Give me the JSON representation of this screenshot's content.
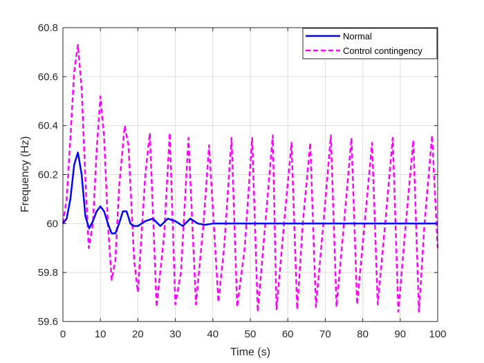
{
  "chart_data": {
    "type": "line",
    "title": "",
    "xlabel": "Time (s)",
    "ylabel": "Frequency (Hz)",
    "xlim": [
      0,
      100
    ],
    "ylim": [
      59.6,
      60.8
    ],
    "xticks": [
      0,
      10,
      20,
      30,
      40,
      50,
      60,
      70,
      80,
      90,
      100
    ],
    "yticks": [
      59.6,
      59.8,
      60,
      60.2,
      60.4,
      60.6,
      60.8
    ],
    "xtick_labels": [
      "0",
      "10",
      "20",
      "30",
      "40",
      "50",
      "60",
      "70",
      "80",
      "90",
      "100"
    ],
    "ytick_labels": [
      "59.6",
      "59.8",
      "60",
      "60.2",
      "60.4",
      "60.6",
      "60.8"
    ],
    "grid": true,
    "legend_position": "top-right",
    "series": [
      {
        "name": "Normal",
        "color": "#0000ff",
        "style": "solid",
        "x": [
          0,
          1,
          2,
          3,
          4,
          5,
          6,
          7,
          8,
          9,
          10,
          11,
          12,
          13,
          14,
          15,
          16,
          17,
          18,
          19,
          20,
          22,
          24,
          26,
          28,
          30,
          32,
          34,
          36,
          38,
          40,
          45,
          50,
          55,
          60,
          65,
          70,
          75,
          80,
          85,
          90,
          95,
          100
        ],
        "y": [
          60.0,
          60.02,
          60.1,
          60.24,
          60.29,
          60.2,
          60.03,
          59.98,
          60.01,
          60.05,
          60.07,
          60.05,
          60.0,
          59.96,
          59.96,
          60.0,
          60.05,
          60.05,
          60.0,
          59.99,
          59.99,
          60.01,
          60.02,
          59.99,
          60.02,
          60.01,
          59.99,
          60.02,
          60.0,
          59.995,
          60.0,
          60.0,
          60.0,
          60.0,
          60.0,
          60.0,
          60.0,
          60.0,
          60.0,
          60.0,
          60.0,
          60.0,
          60.0
        ]
      },
      {
        "name": "Control contingency",
        "color": "#ff00ff",
        "style": "dashed",
        "x": [
          0,
          1,
          2,
          3,
          4,
          5,
          6,
          6.9,
          8,
          9,
          10,
          11,
          12,
          13,
          14,
          15,
          16.5,
          17.5,
          19,
          20,
          22,
          23.2,
          25,
          27,
          28.5,
          30,
          31.5,
          33.5,
          35.5,
          37.5,
          39,
          41.5,
          43,
          45,
          46.5,
          48.5,
          50.5,
          52,
          54,
          56,
          57,
          59,
          61,
          62.5,
          64,
          66,
          67.5,
          69.5,
          71.5,
          73,
          75,
          77,
          78.5,
          80.5,
          82.5,
          84,
          86,
          88,
          89.5,
          91.5,
          93.5,
          95,
          96.5,
          98.5,
          100
        ],
        "y": [
          60.0,
          60.1,
          60.35,
          60.62,
          60.73,
          60.55,
          60.18,
          59.9,
          60.0,
          60.3,
          60.52,
          60.35,
          60.0,
          59.77,
          59.85,
          60.15,
          60.4,
          60.32,
          59.85,
          59.72,
          60.2,
          60.37,
          59.66,
          59.95,
          60.37,
          59.67,
          59.8,
          60.35,
          59.67,
          60.0,
          60.32,
          59.68,
          59.9,
          60.35,
          59.66,
          59.9,
          60.35,
          59.64,
          60.0,
          60.36,
          59.65,
          60.0,
          60.33,
          59.65,
          60.0,
          60.33,
          59.66,
          60.0,
          60.36,
          59.66,
          60.0,
          60.35,
          59.67,
          60.0,
          60.33,
          59.67,
          60.0,
          60.35,
          59.64,
          60.0,
          60.34,
          59.64,
          60.0,
          60.36,
          59.9
        ]
      }
    ]
  }
}
